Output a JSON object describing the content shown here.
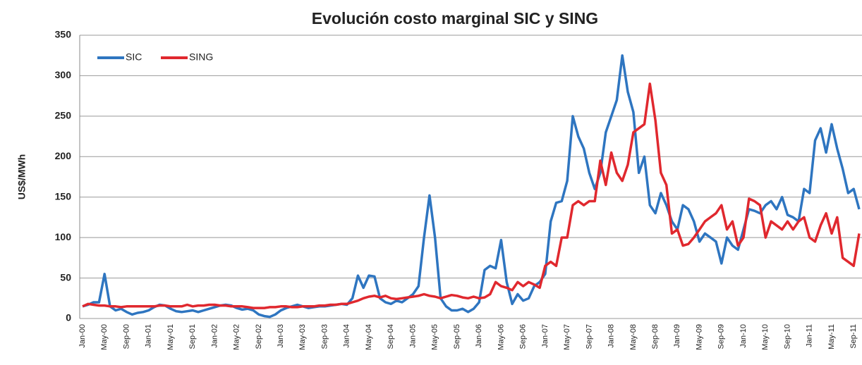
{
  "chart_data": {
    "type": "line",
    "title": "Evolución costo marginal SIC y SING",
    "y_label": "US$/MWh",
    "categories": [
      "Jan-00",
      null,
      null,
      null,
      "May-00",
      null,
      null,
      null,
      "Sep-00",
      null,
      null,
      null,
      "Jan-01",
      null,
      null,
      null,
      "May-01",
      null,
      null,
      null,
      "Sep-01",
      null,
      null,
      null,
      "Jan-02",
      null,
      null,
      null,
      "May-02",
      null,
      null,
      null,
      "Sep-02",
      null,
      null,
      null,
      "Jan-03",
      null,
      null,
      null,
      "May-03",
      null,
      null,
      null,
      "Sep-03",
      null,
      null,
      null,
      "Jan-04",
      null,
      null,
      null,
      "May-04",
      null,
      null,
      null,
      "Sep-04",
      null,
      null,
      null,
      "Jan-05",
      null,
      null,
      null,
      "May-05",
      null,
      null,
      null,
      "Sep-05",
      null,
      null,
      null,
      "Jan-06",
      null,
      null,
      null,
      "May-06",
      null,
      null,
      null,
      "Sep-06",
      null,
      null,
      null,
      "Jan-07",
      null,
      null,
      null,
      "May-07",
      null,
      null,
      null,
      "Sep-07",
      null,
      null,
      null,
      "Jan-08",
      null,
      null,
      null,
      "May-08",
      null,
      null,
      null,
      "Sep-08",
      null,
      null,
      null,
      "Jan-09",
      null,
      null,
      null,
      "May-09",
      null,
      null,
      null,
      "Sep-09",
      null,
      null,
      null,
      "Jan-10",
      null,
      null,
      null,
      "May-10",
      null,
      null,
      null,
      "Sep-10",
      null,
      null,
      null,
      "Jan-11",
      null,
      null,
      null,
      "May-11",
      null,
      null,
      null,
      "Sep-11",
      null
    ],
    "series": [
      {
        "name": "SIC",
        "color": "#2e75c0",
        "values": [
          15,
          17,
          20,
          20,
          55,
          15,
          10,
          12,
          8,
          5,
          7,
          8,
          10,
          14,
          17,
          16,
          12,
          9,
          8,
          9,
          10,
          8,
          10,
          12,
          14,
          16,
          17,
          16,
          13,
          11,
          12,
          10,
          5,
          3,
          2,
          5,
          10,
          13,
          15,
          17,
          15,
          13,
          14,
          15,
          15,
          16,
          17,
          18,
          17,
          25,
          53,
          38,
          53,
          52,
          25,
          20,
          18,
          22,
          20,
          25,
          30,
          40,
          100,
          152,
          100,
          25,
          15,
          10,
          10,
          12,
          8,
          12,
          20,
          60,
          65,
          62,
          97,
          45,
          18,
          30,
          22,
          25,
          40,
          45,
          55,
          120,
          143,
          145,
          170,
          250,
          225,
          210,
          180,
          160,
          180,
          230,
          250,
          270,
          325,
          280,
          255,
          180,
          200,
          140,
          130,
          155,
          140,
          120,
          110,
          140,
          135,
          120,
          95,
          105,
          100,
          95,
          68,
          100,
          90,
          85,
          110,
          135,
          133,
          130,
          140,
          145,
          135,
          150,
          128,
          125,
          120,
          160,
          155,
          220,
          235,
          205,
          240,
          210,
          185,
          155,
          160,
          135
        ]
      },
      {
        "name": "SING",
        "color": "#e0282e",
        "values": [
          15,
          18,
          17,
          16,
          16,
          15,
          15,
          14,
          15,
          15,
          15,
          15,
          15,
          15,
          16,
          16,
          15,
          15,
          15,
          17,
          15,
          16,
          16,
          17,
          17,
          16,
          16,
          15,
          15,
          15,
          14,
          13,
          13,
          13,
          14,
          14,
          15,
          15,
          14,
          14,
          15,
          15,
          15,
          16,
          16,
          17,
          17,
          18,
          18,
          20,
          22,
          25,
          27,
          28,
          26,
          28,
          25,
          24,
          25,
          26,
          27,
          28,
          30,
          28,
          27,
          25,
          27,
          29,
          28,
          26,
          25,
          27,
          25,
          26,
          30,
          45,
          40,
          38,
          35,
          45,
          40,
          45,
          42,
          38,
          65,
          70,
          65,
          100,
          100,
          140,
          145,
          140,
          145,
          145,
          195,
          165,
          205,
          180,
          170,
          190,
          230,
          235,
          240,
          290,
          245,
          180,
          165,
          105,
          110,
          90,
          92,
          100,
          110,
          120,
          125,
          130,
          140,
          110,
          120,
          90,
          100,
          148,
          145,
          140,
          100,
          120,
          115,
          110,
          120,
          110,
          120,
          125,
          100,
          95,
          115,
          130,
          105,
          125,
          75,
          70,
          65,
          105
        ]
      }
    ],
    "ylim": [
      0,
      350
    ],
    "yticks": [
      0,
      50,
      100,
      150,
      200,
      250,
      300,
      350
    ],
    "grid": true,
    "legend": "top-left"
  }
}
